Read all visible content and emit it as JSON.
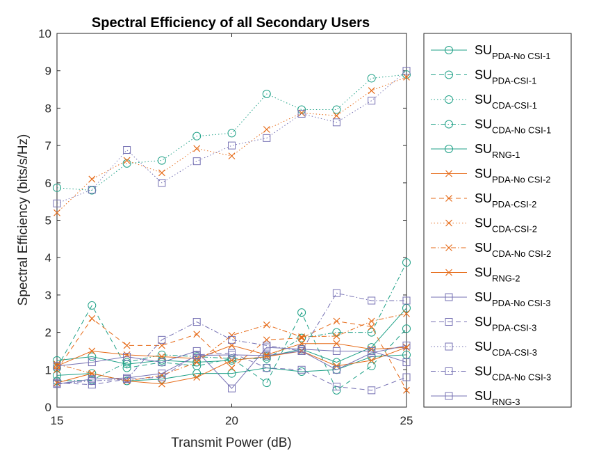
{
  "chart_data": {
    "type": "line",
    "title": "Spectral Efficiency of all Secondary Users",
    "xlabel": "Transmit Power (dB)",
    "ylabel": "Spectral Efficiency (bits/s/Hz)",
    "xlim": [
      15,
      25
    ],
    "ylim": [
      0,
      10
    ],
    "x_ticks": [
      "15",
      "20",
      "25"
    ],
    "y_ticks": [
      "0",
      "1",
      "2",
      "3",
      "4",
      "5",
      "6",
      "7",
      "8",
      "9",
      "10"
    ],
    "x": [
      15,
      16,
      17,
      18,
      19,
      20,
      21,
      22,
      23,
      24,
      25
    ],
    "grid": false,
    "legend_position": "outside-right",
    "series": [
      {
        "name": "SU",
        "sub": "PDA-No CSI-1",
        "color": "#1fa187",
        "marker": "circle",
        "dash": "solid",
        "values": [
          1.25,
          1.35,
          1.15,
          1.25,
          1.2,
          1.25,
          1.35,
          1.55,
          1.2,
          1.6,
          2.65
        ]
      },
      {
        "name": "SU",
        "sub": "PDA-CSI-1",
        "color": "#1fa187",
        "marker": "circle",
        "dash": "dashed",
        "values": [
          1.05,
          2.72,
          1.05,
          1.2,
          1.1,
          1.3,
          0.65,
          2.53,
          0.45,
          1.1,
          2.1
        ]
      },
      {
        "name": "SU",
        "sub": "CDA-CSI-1",
        "color": "#1fa187",
        "marker": "circle",
        "dash": "dotted",
        "values": [
          5.87,
          5.8,
          6.52,
          6.6,
          7.25,
          7.33,
          8.38,
          7.96,
          7.96,
          8.8,
          8.9
        ]
      },
      {
        "name": "SU",
        "sub": "CDA-No CSI-1",
        "color": "#1fa187",
        "marker": "circle",
        "dash": "dashdot",
        "values": [
          0.7,
          0.72,
          1.2,
          1.4,
          1.35,
          1.3,
          1.3,
          1.85,
          2.0,
          2.0,
          3.87
        ]
      },
      {
        "name": "SU",
        "sub": "RNG-1",
        "color": "#1fa187",
        "marker": "circle",
        "dash": "solid",
        "values": [
          0.85,
          0.9,
          0.7,
          0.75,
          0.9,
          0.9,
          1.05,
          0.95,
          1.0,
          1.35,
          1.4
        ]
      },
      {
        "name": "SU",
        "sub": "PDA-No CSI-2",
        "color": "#e66a17",
        "marker": "x",
        "dash": "solid",
        "values": [
          1.1,
          1.5,
          1.4,
          1.35,
          1.3,
          1.65,
          1.4,
          1.7,
          1.7,
          1.55,
          1.6
        ]
      },
      {
        "name": "SU",
        "sub": "PDA-CSI-2",
        "color": "#e66a17",
        "marker": "x",
        "dash": "dashed",
        "values": [
          1.0,
          2.37,
          1.65,
          1.65,
          1.95,
          1.05,
          1.8,
          1.85,
          2.3,
          2.15,
          0.45
        ]
      },
      {
        "name": "SU",
        "sub": "CDA-CSI-2",
        "color": "#e66a17",
        "marker": "x",
        "dash": "dotted",
        "values": [
          5.2,
          6.1,
          6.6,
          6.27,
          6.92,
          6.72,
          7.43,
          7.87,
          7.8,
          8.47,
          8.83
        ]
      },
      {
        "name": "SU",
        "sub": "CDA-No CSI-2",
        "color": "#e66a17",
        "marker": "x",
        "dash": "dashdot",
        "values": [
          1.15,
          0.9,
          0.7,
          0.85,
          1.2,
          1.92,
          2.2,
          1.88,
          1.9,
          2.3,
          2.5
        ]
      },
      {
        "name": "SU",
        "sub": "RNG-2",
        "color": "#e66a17",
        "marker": "x",
        "dash": "solid",
        "values": [
          0.65,
          0.9,
          0.7,
          0.62,
          0.8,
          1.25,
          1.35,
          1.5,
          1.1,
          1.25,
          1.6
        ]
      },
      {
        "name": "SU",
        "sub": "PDA-No CSI-3",
        "color": "#7570b3",
        "marker": "square",
        "dash": "solid",
        "values": [
          0.62,
          0.75,
          0.78,
          0.9,
          1.38,
          1.4,
          1.38,
          1.5,
          1.0,
          1.45,
          1.65
        ]
      },
      {
        "name": "SU",
        "sub": "PDA-CSI-3",
        "color": "#7570b3",
        "marker": "square",
        "dash": "dashed",
        "values": [
          0.65,
          0.6,
          0.75,
          0.8,
          1.4,
          1.45,
          1.05,
          1.0,
          0.55,
          0.45,
          0.8
        ]
      },
      {
        "name": "SU",
        "sub": "CDA-CSI-3",
        "color": "#7570b3",
        "marker": "square",
        "dash": "dotted",
        "values": [
          5.45,
          5.82,
          6.88,
          6.0,
          6.58,
          7.0,
          7.2,
          7.85,
          7.62,
          8.2,
          9.0
        ]
      },
      {
        "name": "SU",
        "sub": "CDA-No CSI-3",
        "color": "#7570b3",
        "marker": "square",
        "dash": "dashdot",
        "values": [
          0.62,
          0.7,
          0.75,
          1.8,
          2.28,
          1.8,
          1.65,
          1.5,
          3.05,
          2.85,
          2.85
        ]
      },
      {
        "name": "SU",
        "sub": "RNG-3",
        "color": "#7570b3",
        "marker": "square",
        "dash": "solid",
        "values": [
          1.1,
          1.2,
          1.35,
          1.2,
          1.5,
          0.5,
          1.6,
          1.55,
          1.5,
          1.5,
          1.2
        ]
      }
    ]
  }
}
